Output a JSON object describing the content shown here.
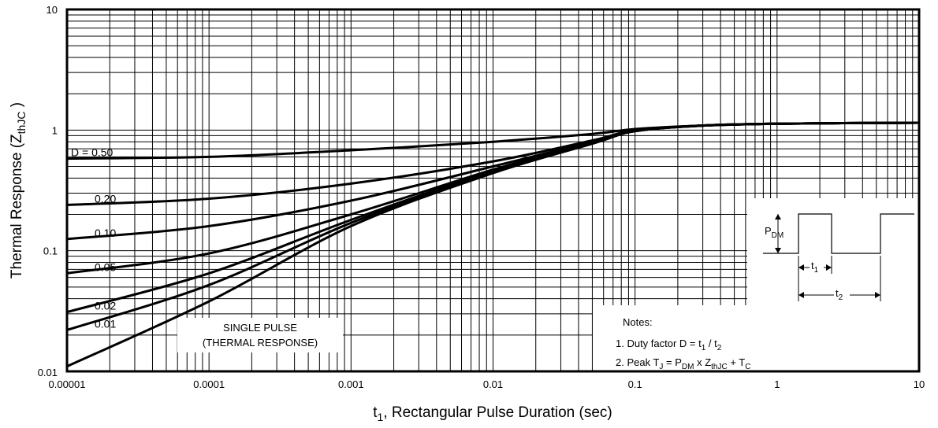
{
  "chart_data": {
    "type": "line",
    "title": "",
    "xlabel_main": "t",
    "xlabel_sub": "1",
    "xlabel_rest": ", Rectangular Pulse Duration (sec)",
    "ylabel_main": "Thermal Response (Z",
    "ylabel_sub": "thJC",
    "ylabel_end": " )",
    "x_scale": "log",
    "y_scale": "log",
    "xlim": [
      1e-05,
      10
    ],
    "ylim": [
      0.01,
      10
    ],
    "grid": true,
    "x_ticks": [
      "0.00001",
      "0.0001",
      "0.001",
      "0.01",
      "0.1",
      "1",
      "10"
    ],
    "y_ticks": [
      "0.01",
      "0.1",
      "1",
      "10"
    ],
    "series": [
      {
        "name": "D = 0.50",
        "x": [
          1e-05,
          0.0001,
          0.001,
          0.01,
          0.05,
          0.1,
          0.3,
          1,
          10
        ],
        "y": [
          0.58,
          0.6,
          0.68,
          0.8,
          0.93,
          1.02,
          1.09,
          1.13,
          1.15
        ]
      },
      {
        "name": "0.20",
        "x": [
          1e-05,
          0.0001,
          0.001,
          0.01,
          0.05,
          0.1,
          0.3,
          1,
          10
        ],
        "y": [
          0.24,
          0.27,
          0.36,
          0.55,
          0.82,
          1.0,
          1.09,
          1.13,
          1.15
        ]
      },
      {
        "name": "0.10",
        "x": [
          1e-05,
          0.0001,
          0.001,
          0.01,
          0.05,
          0.1,
          0.3,
          1,
          10
        ],
        "y": [
          0.125,
          0.16,
          0.26,
          0.5,
          0.8,
          0.99,
          1.09,
          1.13,
          1.15
        ]
      },
      {
        "name": "0.05",
        "x": [
          1e-05,
          0.0001,
          0.001,
          0.01,
          0.05,
          0.1,
          0.3,
          1,
          10
        ],
        "y": [
          0.065,
          0.095,
          0.2,
          0.47,
          0.79,
          0.99,
          1.09,
          1.13,
          1.15
        ]
      },
      {
        "name": "0.02",
        "x": [
          1e-05,
          0.0001,
          0.001,
          0.01,
          0.05,
          0.1,
          0.3,
          1,
          10
        ],
        "y": [
          0.031,
          0.065,
          0.18,
          0.46,
          0.78,
          0.98,
          1.09,
          1.13,
          1.15
        ]
      },
      {
        "name": "0.01",
        "x": [
          1e-05,
          0.0001,
          0.001,
          0.01,
          0.05,
          0.1,
          0.3,
          1,
          10
        ],
        "y": [
          0.022,
          0.052,
          0.17,
          0.45,
          0.78,
          0.98,
          1.09,
          1.13,
          1.15
        ]
      },
      {
        "name": "SINGLE PULSE",
        "x": [
          1e-05,
          0.0001,
          0.001,
          0.01,
          0.05,
          0.1,
          0.3,
          1,
          10
        ],
        "y": [
          0.011,
          0.038,
          0.16,
          0.44,
          0.77,
          0.98,
          1.09,
          1.13,
          1.15
        ]
      }
    ],
    "single_pulse_label": [
      "SINGLE PULSE",
      "(THERMAL RESPONSE)"
    ],
    "notes": {
      "heading": "Notes:",
      "line1_a": "1. Duty factor D = t",
      "line1_sub1": "1",
      "line1_b": " / t",
      "line1_sub2": "2",
      "line2_a": "2. Peak T",
      "line2_sub1": "J",
      "line2_b": " = P",
      "line2_sub2": "DM",
      "line2_c": " x  Z",
      "line2_sub3": "thJC",
      "line2_d": "  + T",
      "line2_sub4": "C"
    },
    "waveform": {
      "p_main": "P",
      "p_sub": "DM",
      "t1_main": "t",
      "t1_sub": "1",
      "t2_main": "t",
      "t2_sub": "2"
    }
  }
}
